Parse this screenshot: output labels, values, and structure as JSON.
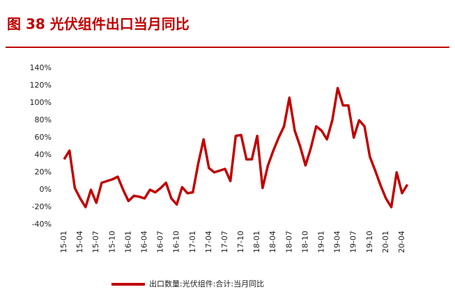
{
  "chart_data": {
    "type": "line",
    "title": "图 38 光伏组件出口当月同比",
    "categories": [
      "15-01",
      null,
      null,
      "15-04",
      null,
      null,
      "15-07",
      null,
      null,
      "15-10",
      null,
      null,
      "16-01",
      null,
      null,
      "16-04",
      null,
      null,
      "16-07",
      null,
      null,
      "16-10",
      null,
      null,
      "17-01",
      null,
      null,
      "17-04",
      null,
      null,
      "17-07",
      null,
      null,
      "17-10",
      null,
      null,
      "18-01",
      null,
      null,
      "18-04",
      null,
      null,
      "18-07",
      null,
      null,
      "18-10",
      null,
      null,
      "19-01",
      null,
      null,
      "19-04",
      null,
      null,
      "19-07",
      null,
      null,
      "19-10",
      null,
      null,
      "20-01",
      null,
      null,
      "20-04",
      null
    ],
    "series": [
      {
        "name": "出口数量:光伏组件:合计:当月同比",
        "color": "#c00000",
        "values": [
          35,
          45,
          2,
          -10,
          -20,
          0,
          -15,
          8,
          10,
          12,
          15,
          0,
          -13,
          -7,
          -8,
          -10,
          0,
          -3,
          2,
          8,
          -10,
          -17,
          3,
          -4,
          -3,
          30,
          58,
          25,
          20,
          22,
          24,
          10,
          62,
          63,
          35,
          35,
          62,
          2,
          28,
          45,
          60,
          73,
          106,
          68,
          50,
          28,
          48,
          73,
          68,
          58,
          80,
          117,
          97,
          97,
          60,
          80,
          73,
          38,
          22,
          5,
          -10,
          -20,
          20,
          -4,
          6
        ]
      }
    ],
    "ylim": [
      -40,
      140
    ],
    "yticks": [
      {
        "value": -40,
        "label": "-40%"
      },
      {
        "value": -20,
        "label": "-20%"
      },
      {
        "value": 0,
        "label": "0%"
      },
      {
        "value": 20,
        "label": "20%"
      },
      {
        "value": 40,
        "label": "40%"
      },
      {
        "value": 60,
        "label": "60%"
      },
      {
        "value": 80,
        "label": "80%"
      },
      {
        "value": 100,
        "label": "100%"
      },
      {
        "value": 120,
        "label": "120%"
      },
      {
        "value": 140,
        "label": "140%"
      }
    ],
    "legend": "bottom"
  }
}
